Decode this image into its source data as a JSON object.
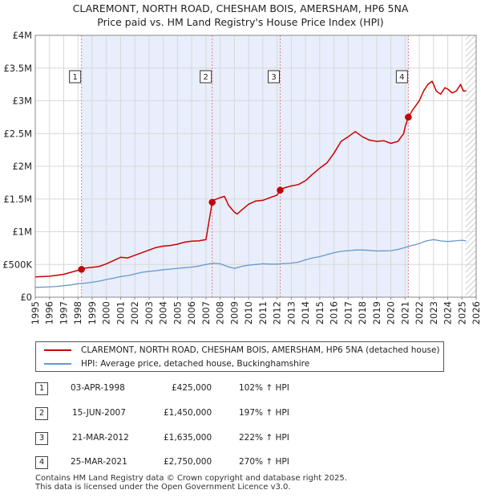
{
  "header": {
    "line1": "CLAREMONT, NORTH ROAD, CHESHAM BOIS, AMERSHAM, HP6 5NA",
    "line2": "Price paid vs. HM Land Registry's House Price Index (HPI)"
  },
  "chart_data": {
    "type": "line",
    "title": "CLAREMONT, NORTH ROAD, CHESHAM BOIS, AMERSHAM, HP6 5NA Price paid vs. HM Land Registry's House Price Index (HPI)",
    "xlim": [
      1995,
      2026
    ],
    "ylim": [
      0,
      4000000
    ],
    "x_ticks": [
      "1995",
      "1996",
      "1997",
      "1998",
      "1999",
      "2000",
      "2001",
      "2002",
      "2003",
      "2004",
      "2005",
      "2006",
      "2007",
      "2008",
      "2009",
      "2010",
      "2011",
      "2012",
      "2013",
      "2014",
      "2015",
      "2016",
      "2017",
      "2018",
      "2019",
      "2020",
      "2021",
      "2022",
      "2023",
      "2024",
      "2025",
      "2026"
    ],
    "y_ticks": [
      {
        "value": 0,
        "label": "£0"
      },
      {
        "value": 500000,
        "label": "£500K"
      },
      {
        "value": 1000000,
        "label": "£1M"
      },
      {
        "value": 1500000,
        "label": "£1.5M"
      },
      {
        "value": 2000000,
        "label": "£2M"
      },
      {
        "value": 2500000,
        "label": "£2.5M"
      },
      {
        "value": 3000000,
        "label": "£3M"
      },
      {
        "value": 3500000,
        "label": "£3.5M"
      },
      {
        "value": 4000000,
        "label": "£4M"
      }
    ],
    "shaded_ranges": [
      [
        1998.25,
        2021.23
      ]
    ],
    "hatched_from": 2025.25,
    "series": [
      {
        "name": "CLAREMONT, NORTH ROAD, CHESHAM BOIS, AMERSHAM, HP6 5NA (detached house)",
        "color": "#cc0000",
        "x": [
          1995.0,
          1995.5,
          1996.0,
          1996.5,
          1997.0,
          1997.5,
          1998.0,
          1998.25,
          1998.5,
          1999.0,
          1999.5,
          2000.0,
          2000.5,
          2001.0,
          2001.5,
          2002.0,
          2002.5,
          2003.0,
          2003.5,
          2004.0,
          2004.5,
          2005.0,
          2005.5,
          2006.0,
          2006.5,
          2007.0,
          2007.44,
          2007.5,
          2008.0,
          2008.3,
          2008.6,
          2009.0,
          2009.2,
          2009.5,
          2010.0,
          2010.5,
          2011.0,
          2011.5,
          2012.0,
          2012.22,
          2012.5,
          2013.0,
          2013.5,
          2014.0,
          2014.5,
          2015.0,
          2015.5,
          2016.0,
          2016.5,
          2017.0,
          2017.5,
          2018.0,
          2018.5,
          2019.0,
          2019.5,
          2020.0,
          2020.5,
          2020.9,
          2021.0,
          2021.23,
          2021.5,
          2022.0,
          2022.3,
          2022.6,
          2022.9,
          2023.2,
          2023.5,
          2023.8,
          2024.0,
          2024.3,
          2024.6,
          2024.9,
          2025.1,
          2025.3
        ],
        "values": [
          310000,
          315000,
          320000,
          335000,
          350000,
          380000,
          410000,
          425000,
          445000,
          455000,
          470000,
          510000,
          560000,
          610000,
          600000,
          640000,
          680000,
          720000,
          760000,
          780000,
          790000,
          810000,
          840000,
          855000,
          860000,
          880000,
          1450000,
          1480000,
          1520000,
          1540000,
          1400000,
          1300000,
          1270000,
          1330000,
          1420000,
          1470000,
          1480000,
          1520000,
          1560000,
          1635000,
          1670000,
          1700000,
          1720000,
          1780000,
          1880000,
          1970000,
          2050000,
          2200000,
          2380000,
          2450000,
          2530000,
          2450000,
          2400000,
          2380000,
          2390000,
          2350000,
          2380000,
          2500000,
          2600000,
          2750000,
          2850000,
          3000000,
          3150000,
          3250000,
          3300000,
          3150000,
          3100000,
          3200000,
          3180000,
          3120000,
          3150000,
          3250000,
          3150000,
          3150000
        ]
      },
      {
        "name": "HPI: Average price, detached house, Buckinghamshire",
        "color": "#6699cc",
        "x": [
          1995.0,
          1995.5,
          1996.0,
          1996.5,
          1997.0,
          1997.5,
          1998.0,
          1998.5,
          1999.0,
          1999.5,
          2000.0,
          2000.5,
          2001.0,
          2001.5,
          2002.0,
          2002.5,
          2003.0,
          2003.5,
          2004.0,
          2004.5,
          2005.0,
          2005.5,
          2006.0,
          2006.5,
          2007.0,
          2007.5,
          2008.0,
          2008.5,
          2009.0,
          2009.5,
          2010.0,
          2010.5,
          2011.0,
          2011.5,
          2012.0,
          2012.5,
          2013.0,
          2013.5,
          2014.0,
          2014.5,
          2015.0,
          2015.5,
          2016.0,
          2016.5,
          2017.0,
          2017.5,
          2018.0,
          2018.5,
          2019.0,
          2019.5,
          2020.0,
          2020.5,
          2021.0,
          2021.5,
          2022.0,
          2022.5,
          2023.0,
          2023.5,
          2024.0,
          2024.5,
          2025.0,
          2025.3
        ],
        "values": [
          150000,
          153000,
          158000,
          165000,
          175000,
          188000,
          205000,
          215000,
          228000,
          245000,
          270000,
          290000,
          315000,
          330000,
          355000,
          380000,
          395000,
          405000,
          420000,
          430000,
          440000,
          450000,
          460000,
          475000,
          500000,
          520000,
          510000,
          470000,
          440000,
          470000,
          490000,
          500000,
          510000,
          505000,
          505000,
          515000,
          520000,
          535000,
          570000,
          600000,
          620000,
          650000,
          680000,
          700000,
          710000,
          720000,
          720000,
          715000,
          705000,
          708000,
          710000,
          730000,
          760000,
          790000,
          820000,
          860000,
          880000,
          860000,
          850000,
          860000,
          870000,
          860000
        ]
      }
    ],
    "sales": [
      {
        "label": "1",
        "x": 1998.25,
        "value": 425000
      },
      {
        "label": "2",
        "x": 2007.44,
        "value": 1450000
      },
      {
        "label": "3",
        "x": 2012.22,
        "value": 1635000
      },
      {
        "label": "4",
        "x": 2021.23,
        "value": 2750000
      }
    ]
  },
  "legend": {
    "items": [
      {
        "label": "CLAREMONT, NORTH ROAD, CHESHAM BOIS, AMERSHAM, HP6 5NA (detached house)",
        "color": "#cc0000"
      },
      {
        "label": "HPI: Average price, detached house, Buckinghamshire",
        "color": "#6699cc"
      }
    ]
  },
  "sales_table": [
    {
      "num": "1",
      "date": "03-APR-1998",
      "price": "£425,000",
      "hpi": "102% ↑ HPI"
    },
    {
      "num": "2",
      "date": "15-JUN-2007",
      "price": "£1,450,000",
      "hpi": "197% ↑ HPI"
    },
    {
      "num": "3",
      "date": "21-MAR-2012",
      "price": "£1,635,000",
      "hpi": "222% ↑ HPI"
    },
    {
      "num": "4",
      "date": "25-MAR-2021",
      "price": "£2,750,000",
      "hpi": "270% ↑ HPI"
    }
  ],
  "footer": {
    "line1": "Contains HM Land Registry data © Crown copyright and database right 2025.",
    "line2": "This data is licensed under the Open Government Licence v3.0."
  }
}
